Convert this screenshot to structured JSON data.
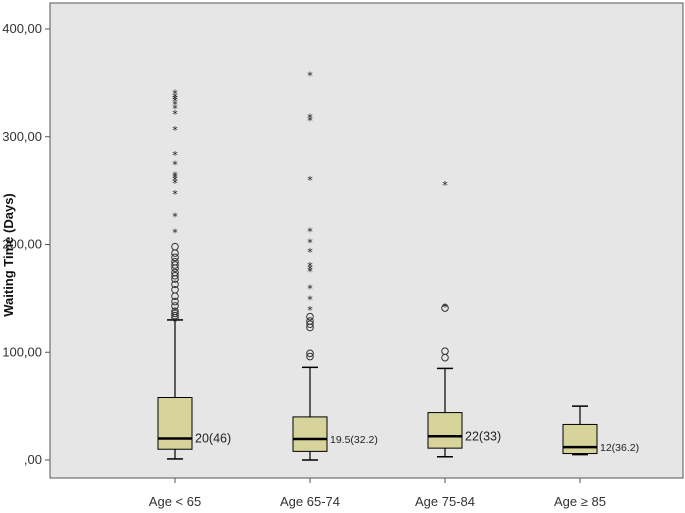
{
  "chart_data": {
    "type": "box",
    "ylabel": "Waiting Time (Days)",
    "xlabel": "",
    "ylim": [
      0,
      420
    ],
    "yticks": [
      0,
      100,
      200,
      300,
      400
    ],
    "ytick_labels": [
      ",00",
      "100,00",
      "200,00",
      "300,00",
      "400,00"
    ],
    "grid": false,
    "colors": {
      "plot_bg": "#e6e6e6",
      "box_fill": "#d6d39b",
      "stroke": "#000000"
    },
    "groups": [
      {
        "category": "Age < 65",
        "whisker_low": 1,
        "q1": 10,
        "median": 20,
        "q3": 58,
        "whisker_high": 130,
        "annotation": "20(46)",
        "outliers_circle": [
          132,
          134,
          136,
          138,
          143,
          147,
          152,
          158,
          163,
          168,
          171,
          174,
          178,
          181,
          184,
          188,
          192,
          198
        ],
        "outliers_star": [
          212,
          227,
          248,
          258,
          261,
          263,
          265,
          275,
          284,
          307,
          322,
          327,
          331,
          334,
          336,
          338,
          341
        ]
      },
      {
        "category": "Age 65-74",
        "whisker_low": 0,
        "q1": 8,
        "median": 19.5,
        "q3": 40,
        "whisker_high": 86,
        "annotation": "19.5(32.2)",
        "outliers_circle": [
          96,
          99,
          123,
          126,
          129,
          133
        ],
        "outliers_star": [
          140,
          150,
          160,
          176,
          178,
          181,
          194,
          203,
          213,
          261,
          316,
          319,
          358
        ]
      },
      {
        "category": "Age 75-84",
        "whisker_low": 3,
        "q1": 11,
        "median": 22,
        "q3": 44,
        "whisker_high": 85,
        "annotation": "22(33)",
        "outliers_circle": [
          95,
          101,
          141
        ],
        "outliers_star": [
          143,
          256
        ]
      },
      {
        "category": "Age ≥ 85",
        "whisker_low": 5,
        "q1": 6,
        "median": 12,
        "q3": 33,
        "whisker_high": 50,
        "annotation": "12(36.2)",
        "outliers_circle": [],
        "outliers_star": []
      }
    ]
  }
}
